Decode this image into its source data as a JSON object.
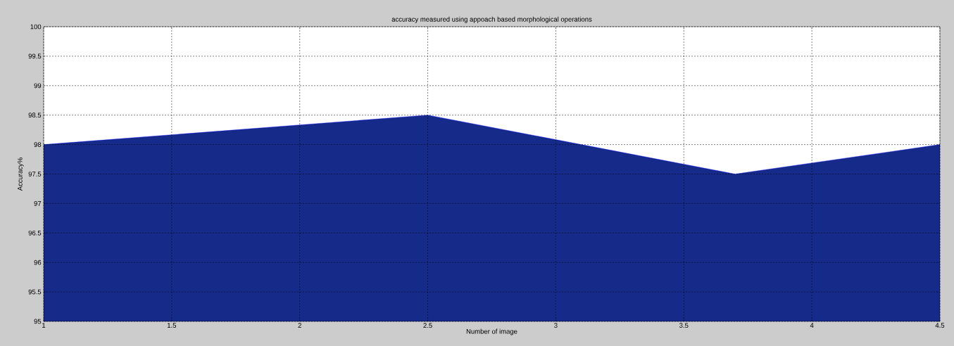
{
  "chart_data": {
    "type": "area",
    "title": "accuracy measured using appoach based morphological operations",
    "xlabel": "Number of image",
    "ylabel": "Accuracy%",
    "x": [
      1,
      2.5,
      3.7,
      4.5
    ],
    "values": [
      98,
      98.5,
      97.5,
      98
    ],
    "color": "#162a8a",
    "xlim": [
      1,
      4.5
    ],
    "ylim": [
      95,
      100
    ],
    "xticks": [
      1,
      1.5,
      2,
      2.5,
      3,
      3.5,
      4,
      4.5
    ],
    "yticks": [
      95,
      95.5,
      96,
      96.5,
      97,
      97.5,
      98,
      98.5,
      99,
      99.5,
      100
    ],
    "grid": true,
    "line_style": "solid"
  }
}
